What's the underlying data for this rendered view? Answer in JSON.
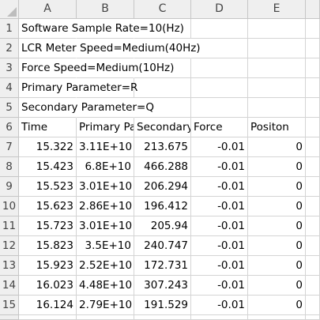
{
  "columns": [
    "A",
    "B",
    "C",
    "D",
    "E"
  ],
  "row_numbers": [
    "1",
    "2",
    "3",
    "4",
    "5",
    "6",
    "7",
    "8",
    "9",
    "10",
    "11",
    "12",
    "13",
    "14",
    "15"
  ],
  "info_lines": [
    "Software Sample Rate=10(Hz)",
    "LCR Meter Speed=Medium(40Hz)",
    "Force Speed=Medium(10Hz)",
    "Primary Parameter=R",
    "Secondary Parameter=Q"
  ],
  "headers": [
    "Time",
    "Primary Pa",
    "Secondary",
    "Force",
    "Positon"
  ],
  "rows": [
    [
      "15.322",
      "3.11E+10",
      "213.675",
      "-0.01",
      "0"
    ],
    [
      "15.423",
      "6.8E+10",
      "466.288",
      "-0.01",
      "0"
    ],
    [
      "15.523",
      "3.01E+10",
      "206.294",
      "-0.01",
      "0"
    ],
    [
      "15.623",
      "2.86E+10",
      "196.412",
      "-0.01",
      "0"
    ],
    [
      "15.723",
      "3.01E+10",
      "205.94",
      "-0.01",
      "0"
    ],
    [
      "15.823",
      "3.5E+10",
      "240.747",
      "-0.01",
      "0"
    ],
    [
      "15.923",
      "2.52E+10",
      "172.731",
      "-0.01",
      "0"
    ],
    [
      "16.023",
      "4.48E+10",
      "307.243",
      "-0.01",
      "0"
    ],
    [
      "16.124",
      "2.79E+10",
      "191.529",
      "-0.01",
      "0"
    ]
  ]
}
